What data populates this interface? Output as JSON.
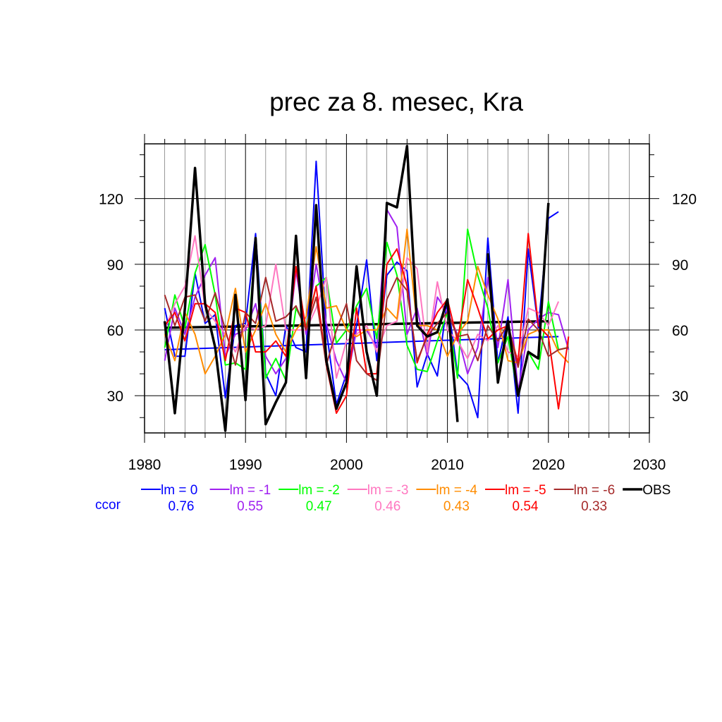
{
  "chart_data": {
    "type": "line",
    "title": "prec za 8. mesec, Kra",
    "xlabel": "",
    "ylabel": "",
    "xlim": [
      1980,
      2030
    ],
    "ylim": [
      13,
      145
    ],
    "x_ticks": [
      "1980",
      "1990",
      "2000",
      "2010",
      "2020",
      "2030"
    ],
    "y_ticks": [
      "30",
      "60",
      "90",
      "120"
    ],
    "grid": true,
    "legend_position": "bottom",
    "ccor_label": "ccor",
    "series": [
      {
        "name": "lm = 0",
        "color": "#0000ff",
        "ccor": "0.76",
        "line_width": 2,
        "x": [
          1982,
          1983,
          1984,
          1985,
          1986,
          1987,
          1988,
          1989,
          1990,
          1991,
          1992,
          1993,
          1994,
          1995,
          1996,
          1997,
          1998,
          1999,
          2000,
          2001,
          2002,
          2003,
          2004,
          2005,
          2006,
          2007,
          2008,
          2009,
          2010,
          2011,
          2012,
          2013,
          2014,
          2015,
          2016,
          2017,
          2018,
          2019,
          2020,
          2021
        ],
        "values": [
          70,
          48,
          48,
          86,
          63,
          67,
          29,
          62,
          63,
          104,
          40,
          30,
          62,
          52,
          50,
          137,
          60,
          26,
          40,
          62,
          92,
          46,
          85,
          91,
          87,
          34,
          49,
          39,
          74,
          40,
          35,
          20,
          102,
          45,
          66,
          22,
          97,
          61,
          111,
          114
        ],
        "trend": [
          51,
          57
        ]
      },
      {
        "name": "lm = -1",
        "color": "#a020f0",
        "ccor": "0.55",
        "line_width": 2,
        "x": [
          1982,
          1983,
          1984,
          1985,
          1986,
          1987,
          1988,
          1989,
          1990,
          1991,
          1992,
          1993,
          1994,
          1995,
          1996,
          1997,
          1998,
          1999,
          2000,
          2001,
          2002,
          2003,
          2004,
          2005,
          2006,
          2007,
          2008,
          2009,
          2010,
          2011,
          2012,
          2013,
          2014,
          2015,
          2016,
          2017,
          2018,
          2019,
          2020,
          2021,
          2022
        ],
        "values": [
          46,
          70,
          58,
          75,
          85,
          93,
          48,
          58,
          60,
          72,
          48,
          40,
          47,
          87,
          58,
          90,
          63,
          46,
          36,
          60,
          60,
          52,
          115,
          107,
          58,
          70,
          48,
          75,
          68,
          58,
          40,
          52,
          84,
          52,
          83,
          32,
          60,
          65,
          68,
          67,
          51
        ],
        "trend": null
      },
      {
        "name": "lm = -2",
        "color": "#00ff00",
        "ccor": "0.47",
        "line_width": 2,
        "x": [
          1982,
          1983,
          1984,
          1985,
          1986,
          1987,
          1988,
          1989,
          1990,
          1991,
          1992,
          1993,
          1994,
          1995,
          1996,
          1997,
          1998,
          1999,
          2000,
          2001,
          2002,
          2003,
          2004,
          2005,
          2006,
          2007,
          2008,
          2009,
          2010,
          2011,
          2012,
          2013,
          2014,
          2015,
          2016,
          2017,
          2018,
          2019,
          2020,
          2021,
          2022
        ],
        "values": [
          52,
          76,
          61,
          86,
          99,
          76,
          44,
          45,
          42,
          101,
          38,
          47,
          37,
          70,
          61,
          80,
          84,
          54,
          60,
          71,
          79,
          56,
          100,
          85,
          53,
          42,
          41,
          55,
          68,
          38,
          106,
          85,
          70,
          45,
          57,
          30,
          50,
          42,
          73,
          51,
          52
        ],
        "trend": null
      },
      {
        "name": "lm = -3",
        "color": "#ff77c0",
        "ccor": "0.46",
        "line_width": 2,
        "x": [
          1982,
          1983,
          1984,
          1985,
          1986,
          1987,
          1988,
          1989,
          1990,
          1991,
          1992,
          1993,
          1994,
          1995,
          1996,
          1997,
          1998,
          1999,
          2000,
          2001,
          2002,
          2003,
          2004,
          2005,
          2006,
          2007,
          2008,
          2009,
          2010,
          2011,
          2012,
          2013,
          2014,
          2015,
          2016,
          2017,
          2018,
          2019,
          2020,
          2021
        ],
        "values": [
          60,
          72,
          80,
          103,
          70,
          64,
          58,
          50,
          62,
          60,
          62,
          90,
          60,
          60,
          60,
          70,
          84,
          38,
          55,
          58,
          62,
          50,
          62,
          64,
          93,
          88,
          50,
          82,
          60,
          55,
          47,
          58,
          55,
          62,
          50,
          48,
          70,
          68,
          62,
          73
        ],
        "trend": null
      },
      {
        "name": "lm = -4",
        "color": "#ff8c00",
        "ccor": "0.43",
        "line_width": 2,
        "x": [
          1982,
          1983,
          1984,
          1985,
          1986,
          1987,
          1988,
          1989,
          1990,
          1991,
          1992,
          1993,
          1994,
          1995,
          1996,
          1997,
          1998,
          1999,
          2000,
          2001,
          2002,
          2003,
          2004,
          2005,
          2006,
          2007,
          2008,
          2009,
          2010,
          2011,
          2012,
          2013,
          2014,
          2015,
          2016,
          2017,
          2018,
          2019,
          2020,
          2021,
          2022
        ],
        "values": [
          58,
          46,
          68,
          58,
          40,
          48,
          58,
          79,
          50,
          60,
          72,
          58,
          50,
          60,
          66,
          98,
          70,
          71,
          60,
          57,
          60,
          60,
          70,
          65,
          106,
          62,
          62,
          60,
          48,
          58,
          64,
          89,
          76,
          65,
          46,
          45,
          58,
          60,
          60,
          50,
          45
        ],
        "trend": null
      },
      {
        "name": "lm = -5",
        "color": "#ff0000",
        "ccor": "0.54",
        "line_width": 2,
        "x": [
          1982,
          1983,
          1984,
          1985,
          1986,
          1987,
          1988,
          1989,
          1990,
          1991,
          1992,
          1993,
          1994,
          1995,
          1996,
          1997,
          1998,
          1999,
          2000,
          2001,
          2002,
          2003,
          2004,
          2005,
          2006,
          2007,
          2008,
          2009,
          2010,
          2011,
          2012,
          2013,
          2014,
          2015,
          2016,
          2017,
          2018,
          2019,
          2020,
          2021,
          2022
        ],
        "values": [
          62,
          68,
          55,
          72,
          72,
          68,
          46,
          70,
          68,
          50,
          50,
          55,
          48,
          89,
          60,
          80,
          44,
          22,
          30,
          70,
          40,
          40,
          90,
          97,
          80,
          45,
          58,
          68,
          74,
          55,
          83,
          70,
          56,
          60,
          62,
          45,
          104,
          62,
          57,
          24,
          57
        ],
        "trend": null
      },
      {
        "name": "lm = -6",
        "color": "#a52a2a",
        "ccor": "0.33",
        "line_width": 2,
        "x": [
          1982,
          1983,
          1984,
          1985,
          1986,
          1987,
          1988,
          1989,
          1990,
          1991,
          1992,
          1993,
          1994,
          1995,
          1996,
          1997,
          1998,
          1999,
          2000,
          2001,
          2002,
          2003,
          2004,
          2005,
          2006,
          2007,
          2008,
          2009,
          2010,
          2011,
          2012,
          2013,
          2014,
          2015,
          2016,
          2017,
          2018,
          2019,
          2020,
          2021,
          2022
        ],
        "values": [
          76,
          62,
          75,
          76,
          64,
          77,
          60,
          44,
          68,
          63,
          84,
          64,
          66,
          71,
          60,
          75,
          44,
          60,
          72,
          46,
          40,
          37,
          74,
          84,
          78,
          46,
          57,
          63,
          68,
          57,
          58,
          46,
          62,
          55,
          63,
          43,
          65,
          60,
          48,
          51,
          52
        ],
        "trend": null
      },
      {
        "name": "OBS",
        "color": "#000000",
        "ccor": "",
        "line_width": 3.5,
        "x": [
          1982,
          1983,
          1984,
          1985,
          1986,
          1987,
          1988,
          1989,
          1990,
          1991,
          1992,
          1993,
          1994,
          1995,
          1996,
          1997,
          1998,
          1999,
          2000,
          2001,
          2002,
          2003,
          2004,
          2005,
          2006,
          2007,
          2008,
          2009,
          2010,
          2011,
          2012,
          2013,
          2014,
          2015,
          2016,
          2017,
          2018,
          2019,
          2020
        ],
        "values": [
          64,
          22,
          70,
          134,
          72,
          52,
          14,
          76,
          28,
          102,
          17,
          27,
          36,
          103,
          38,
          117,
          46,
          24,
          36,
          89,
          50,
          30,
          118,
          116,
          144,
          62,
          57,
          59,
          74,
          18,
          null,
          null,
          95,
          36,
          64,
          30,
          50,
          47,
          118
        ],
        "trend": [
          61,
          64
        ]
      }
    ]
  }
}
